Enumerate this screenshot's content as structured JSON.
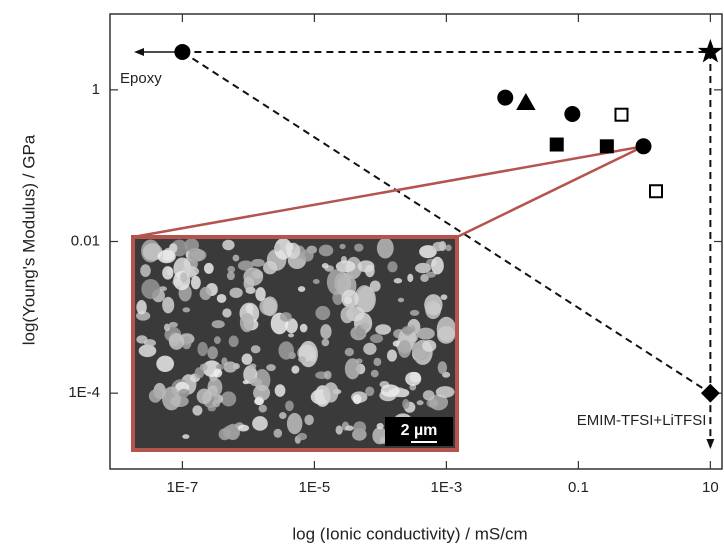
{
  "chart_data": {
    "type": "scatter",
    "x_label": "log (Ionic conductivity) / mS/cm",
    "y_label": "log(Young's Modulus) / GPa",
    "log_x": true,
    "log_y": true,
    "xlim": [
      8e-09,
      15
    ],
    "ylim": [
      1e-05,
      10
    ],
    "xticks": [
      {
        "value": 1e-07,
        "label": "1E-7"
      },
      {
        "value": 1e-05,
        "label": "1E-5"
      },
      {
        "value": 0.001,
        "label": "1E-3"
      },
      0.1,
      10
    ],
    "yticks": [
      {
        "value": 0.0001,
        "label": "1E-4"
      },
      0.01,
      1
    ],
    "series": [
      {
        "marker": "circle",
        "filled": true,
        "color": "#000000",
        "x": [
          1e-07,
          0.0078,
          0.081,
          0.97
        ],
        "values": [
          3.16,
          0.79,
          0.48,
          0.18
        ]
      },
      {
        "marker": "triangle",
        "filled": true,
        "color": "#000000",
        "x": [
          0.016
        ],
        "values": [
          0.67
        ]
      },
      {
        "marker": "square",
        "filled": true,
        "color": "#000000",
        "x": [
          0.047,
          0.27
        ],
        "values": [
          0.19,
          0.18
        ]
      },
      {
        "marker": "square",
        "filled": false,
        "color": "#000000",
        "x": [
          0.45,
          1.5
        ],
        "values": [
          0.47,
          0.046
        ]
      },
      {
        "marker": "star",
        "filled": true,
        "color": "#000000",
        "x": [
          10
        ],
        "values": [
          3.16
        ]
      },
      {
        "marker": "diamond",
        "filled": true,
        "color": "#000000",
        "x": [
          10
        ],
        "values": [
          0.0001
        ]
      }
    ],
    "annotations": [
      "Epoxy",
      "EMIM-TFSI+LiTFSI",
      "2 µm"
    ],
    "inset_color": "#b5534f"
  }
}
